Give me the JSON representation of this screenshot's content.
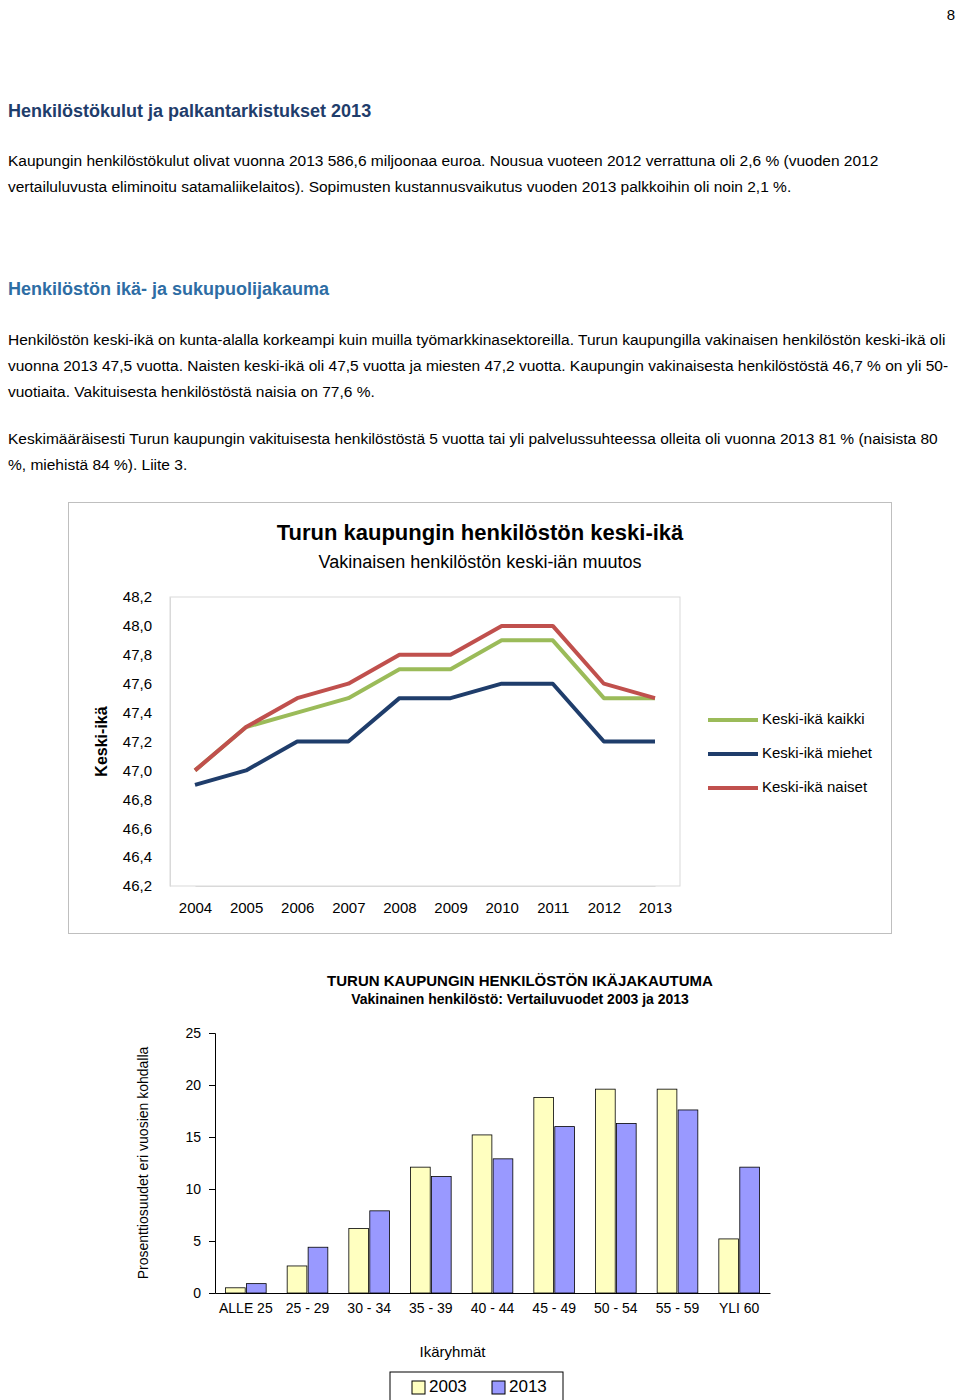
{
  "document": {
    "page_number": "8",
    "heading": "Henkilöstökulut ja palkantarkistukset 2013",
    "paragraph_1": "Kaupungin henkilöstökulut olivat vuonna 2013 586,6 miljoonaa euroa. Nousua vuoteen 2012 verrattuna oli 2,6 % (vuoden 2012 vertailuluvusta eliminoitu satamaliikelaitos). Sopimusten kustannusvaikutus vuoden 2013 palkkoihin oli noin 2,1 %.",
    "subheading": "Henkilöstön ikä- ja sukupuolijakauma",
    "paragraph_2": "Henkilöstön keski-ikä on kunta-alalla korkeampi kuin muilla työmarkkinasektoreilla. Turun kaupungilla vakinaisen henkilöstön keski-ikä oli vuonna 2013 47,5 vuotta. Naisten keski-ikä oli 47,5 vuotta ja miesten 47,2 vuotta. Kaupungin vakinaisesta henkilöstöstä 46,7 % on yli 50-vuotiaita. Vakituisesta henkilöstöstä naisia on 77,6 %.",
    "paragraph_3": "Keskimääräisesti Turun kaupungin vakituisesta henkilöstöstä 5 vuotta tai yli palvelussuhteessa olleita oli vuonna 2013 81 % (naisista 80 %, miehistä 84 %). Liite 3."
  },
  "chart_data": [
    {
      "type": "line",
      "title": "Turun kaupungin henkilöstön keski-ikä",
      "subtitle": "Vakinaisen henkilöstön keski-iän muutos",
      "y_label": "Keski-ikä",
      "categories": [
        "2004",
        "2005",
        "2006",
        "2007",
        "2008",
        "2009",
        "2010",
        "2011",
        "2012",
        "2013"
      ],
      "series": [
        {
          "name": "Keski-ikä kaikki",
          "color": "#9bbb59",
          "values": [
            47.0,
            47.3,
            47.4,
            47.5,
            47.7,
            47.7,
            47.9,
            47.9,
            47.5,
            47.5
          ]
        },
        {
          "name": "Keski-ikä miehet",
          "color": "#1f3d6b",
          "values": [
            46.9,
            47.0,
            47.2,
            47.2,
            47.5,
            47.5,
            47.6,
            47.6,
            47.2,
            47.2
          ]
        },
        {
          "name": "Keski-ikä naiset",
          "color": "#c0504d",
          "values": [
            47.0,
            47.3,
            47.5,
            47.6,
            47.8,
            47.8,
            48.0,
            48.0,
            47.6,
            47.5
          ]
        }
      ],
      "ylim": [
        46.2,
        48.2
      ],
      "yticks": [
        {
          "value": 46.2,
          "label": "46,2"
        },
        {
          "value": 46.4,
          "label": "46,4"
        },
        {
          "value": 46.6,
          "label": "46,6"
        },
        {
          "value": 46.8,
          "label": "46,8"
        },
        {
          "value": 47.0,
          "label": "47,0"
        },
        {
          "value": 47.2,
          "label": "47,2"
        },
        {
          "value": 47.4,
          "label": "47,4"
        },
        {
          "value": 47.6,
          "label": "47,6"
        },
        {
          "value": 47.8,
          "label": "47,8"
        },
        {
          "value": 48.0,
          "label": "48,0"
        },
        {
          "value": 48.2,
          "label": "48,2"
        }
      ],
      "grid": false,
      "legend": "right"
    },
    {
      "type": "bar",
      "title": "TURUN KAUPUNGIN HENKILÖSTÖN IKÄJAKAUTUMA",
      "subtitle": "Vakinainen henkilöstö: Vertailuvuodet 2003 ja 2013",
      "x_label": "Ikäryhmät",
      "y_label": "Prosenttiosuudet eri vuosien kohdalla",
      "categories": [
        "ALLE 25",
        "25 - 29",
        "30 - 34",
        "35 - 39",
        "40 - 44",
        "45 - 49",
        "50 - 54",
        "55 - 59",
        "YLI 60"
      ],
      "series": [
        {
          "name": "2003",
          "color": "#ffffc0",
          "values": [
            0.5,
            2.6,
            6.2,
            12.1,
            15.2,
            18.8,
            19.6,
            19.6,
            5.2
          ]
        },
        {
          "name": "2013",
          "color": "#9999ff",
          "values": [
            0.9,
            4.4,
            7.9,
            11.2,
            12.9,
            16.0,
            16.3,
            17.6,
            12.1
          ]
        }
      ],
      "ylim": [
        0,
        25
      ],
      "yticks": [
        0,
        5,
        10,
        15,
        20,
        25
      ],
      "grid": false,
      "legend": "bottom"
    }
  ]
}
